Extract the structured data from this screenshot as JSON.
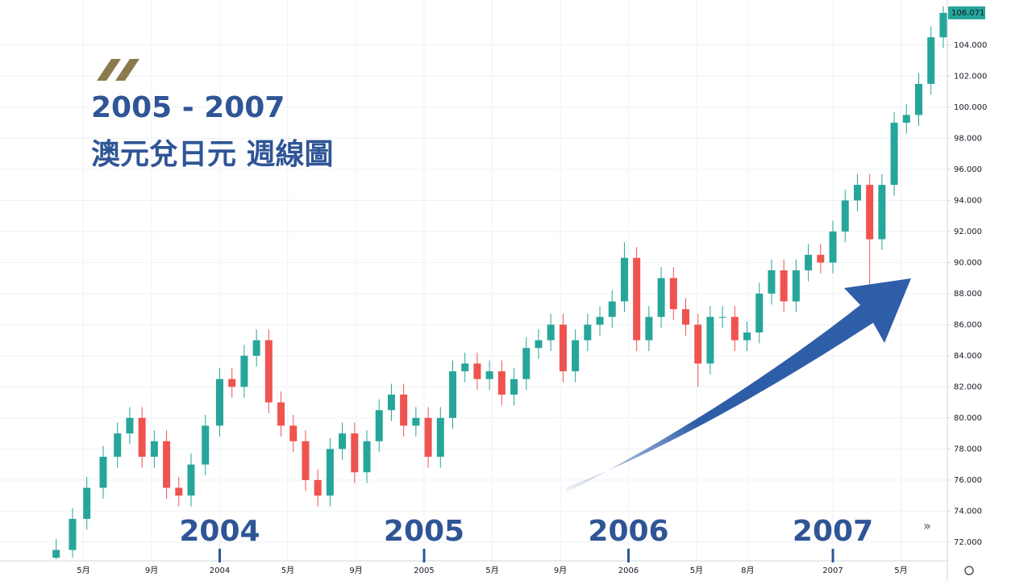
{
  "chart_data": {
    "type": "candlestick",
    "title": "2005 - 2007",
    "subtitle": "澳元兌日元 週線圖",
    "up_color": "#26a69a",
    "down_color": "#ef5350",
    "xlim": [
      2003.15,
      2007.56
    ],
    "ylim": [
      70.8,
      106.9
    ],
    "grid": true,
    "yticks": [
      {
        "value": 72,
        "label": "72.000"
      },
      {
        "value": 74,
        "label": "74.000"
      },
      {
        "value": 76,
        "label": "76.000"
      },
      {
        "value": 78,
        "label": "78.000"
      },
      {
        "value": 80,
        "label": "80.000"
      },
      {
        "value": 82,
        "label": "82.000"
      },
      {
        "value": 84,
        "label": "84.000"
      },
      {
        "value": 86,
        "label": "86.000"
      },
      {
        "value": 88,
        "label": "88.000"
      },
      {
        "value": 90,
        "label": "90.000"
      },
      {
        "value": 92,
        "label": "92.000"
      },
      {
        "value": 94,
        "label": "94.000"
      },
      {
        "value": 96,
        "label": "96.000"
      },
      {
        "value": 98,
        "label": "98.000"
      },
      {
        "value": 100,
        "label": "100.000"
      },
      {
        "value": 102,
        "label": "102.000"
      },
      {
        "value": 104,
        "label": "104.000"
      }
    ],
    "xticks": [
      {
        "value": 2003.333,
        "label": "5月"
      },
      {
        "value": 2003.667,
        "label": "9月"
      },
      2004,
      {
        "value": 2004.333,
        "label": "5月"
      },
      {
        "value": 2004.667,
        "label": "9月"
      },
      2005,
      {
        "value": 2005.333,
        "label": "5月"
      },
      {
        "value": 2005.667,
        "label": "9月"
      },
      2006,
      {
        "value": 2006.333,
        "label": "5月"
      },
      {
        "value": 2006.583,
        "label": "8月"
      },
      2007,
      {
        "value": 2007.333,
        "label": "5月"
      }
    ],
    "annotations": [
      {
        "text": "2004",
        "x": 2004
      },
      {
        "text": "2005",
        "x": 2005
      },
      {
        "text": "2006",
        "x": 2006
      },
      {
        "text": "2007",
        "x": 2007
      }
    ],
    "x": [
      2003.2,
      2003.28,
      2003.35,
      2003.43,
      2003.5,
      2003.56,
      2003.62,
      2003.68,
      2003.74,
      2003.8,
      2003.86,
      2003.93,
      2004.0,
      2004.06,
      2004.12,
      2004.18,
      2004.24,
      2004.3,
      2004.36,
      2004.42,
      2004.48,
      2004.54,
      2004.6,
      2004.66,
      2004.72,
      2004.78,
      2004.84,
      2004.9,
      2004.96,
      2005.02,
      2005.08,
      2005.14,
      2005.2,
      2005.26,
      2005.32,
      2005.38,
      2005.44,
      2005.5,
      2005.56,
      2005.62,
      2005.68,
      2005.74,
      2005.8,
      2005.86,
      2005.92,
      2005.98,
      2006.04,
      2006.1,
      2006.16,
      2006.22,
      2006.28,
      2006.34,
      2006.4,
      2006.46,
      2006.52,
      2006.58,
      2006.64,
      2006.7,
      2006.76,
      2006.82,
      2006.88,
      2006.94,
      2007.0,
      2007.06,
      2007.12,
      2007.18,
      2007.24,
      2007.3,
      2007.36,
      2007.42,
      2007.48,
      2007.54
    ],
    "open": [
      71.0,
      71.5,
      73.5,
      75.5,
      77.5,
      79.0,
      80.0,
      77.5,
      78.5,
      75.5,
      75.0,
      77.0,
      79.5,
      82.5,
      82.0,
      84.0,
      85.0,
      81.0,
      79.5,
      78.5,
      76.0,
      75.0,
      78.0,
      79.0,
      76.5,
      78.5,
      80.5,
      81.5,
      79.5,
      80.0,
      77.5,
      80.0,
      83.0,
      83.5,
      82.5,
      83.0,
      81.5,
      82.5,
      84.5,
      85.0,
      86.0,
      83.0,
      85.0,
      86.0,
      86.5,
      87.5,
      90.3,
      85.0,
      86.5,
      89.0,
      87.0,
      86.0,
      83.5,
      86.5,
      86.5,
      85.0,
      85.5,
      88.0,
      89.5,
      87.5,
      89.5,
      90.5,
      90.0,
      92.0,
      94.0,
      95.0,
      91.5,
      95.0,
      99.0,
      99.5,
      101.5,
      104.5
    ],
    "high": [
      72.2,
      74.2,
      76.2,
      78.2,
      79.7,
      80.7,
      80.7,
      79.2,
      79.2,
      76.2,
      77.7,
      80.2,
      83.2,
      83.2,
      84.7,
      85.7,
      85.7,
      81.7,
      80.2,
      79.2,
      76.7,
      78.7,
      79.7,
      79.7,
      79.2,
      81.2,
      82.2,
      82.2,
      80.7,
      80.7,
      80.7,
      83.7,
      84.2,
      84.2,
      83.7,
      83.7,
      83.2,
      85.2,
      85.7,
      86.7,
      86.7,
      85.7,
      86.7,
      87.2,
      88.2,
      91.3,
      91.0,
      87.2,
      89.7,
      89.7,
      87.7,
      86.7,
      87.2,
      87.2,
      87.2,
      86.2,
      88.7,
      90.2,
      90.2,
      90.2,
      91.2,
      91.2,
      92.7,
      94.7,
      95.7,
      95.7,
      95.7,
      99.7,
      100.2,
      102.2,
      105.2,
      106.5
    ],
    "low": [
      70.9,
      71.0,
      72.8,
      74.8,
      76.8,
      78.3,
      76.8,
      76.8,
      74.8,
      74.3,
      74.3,
      76.3,
      78.8,
      81.3,
      81.3,
      83.3,
      80.3,
      78.8,
      77.8,
      75.3,
      74.3,
      74.3,
      77.3,
      75.8,
      75.8,
      77.8,
      79.8,
      78.8,
      78.8,
      76.8,
      76.8,
      79.3,
      82.3,
      81.8,
      81.8,
      80.8,
      80.8,
      81.8,
      83.8,
      84.3,
      82.3,
      82.3,
      84.3,
      85.3,
      85.8,
      86.8,
      84.3,
      84.3,
      85.8,
      86.3,
      85.3,
      82.0,
      82.8,
      85.8,
      84.3,
      84.3,
      84.8,
      87.3,
      86.8,
      86.8,
      88.8,
      89.3,
      89.3,
      91.3,
      93.3,
      88.6,
      90.8,
      94.3,
      98.3,
      98.8,
      100.8,
      103.8
    ],
    "close": [
      71.5,
      73.5,
      75.5,
      77.5,
      79.0,
      80.0,
      77.5,
      78.5,
      75.5,
      75.0,
      77.0,
      79.5,
      82.5,
      82.0,
      84.0,
      85.0,
      81.0,
      79.5,
      78.5,
      76.0,
      75.0,
      78.0,
      79.0,
      76.5,
      78.5,
      80.5,
      81.5,
      79.5,
      80.0,
      77.5,
      80.0,
      83.0,
      83.5,
      82.5,
      83.0,
      81.5,
      82.5,
      84.5,
      85.0,
      86.0,
      83.0,
      85.0,
      86.0,
      86.5,
      87.5,
      90.3,
      85.0,
      86.5,
      89.0,
      87.0,
      86.0,
      83.5,
      86.5,
      86.5,
      85.0,
      85.5,
      88.0,
      89.5,
      87.5,
      89.5,
      90.5,
      90.0,
      92.0,
      94.0,
      95.0,
      91.5,
      95.0,
      99.0,
      99.5,
      101.5,
      104.5,
      106.071
    ]
  }
}
